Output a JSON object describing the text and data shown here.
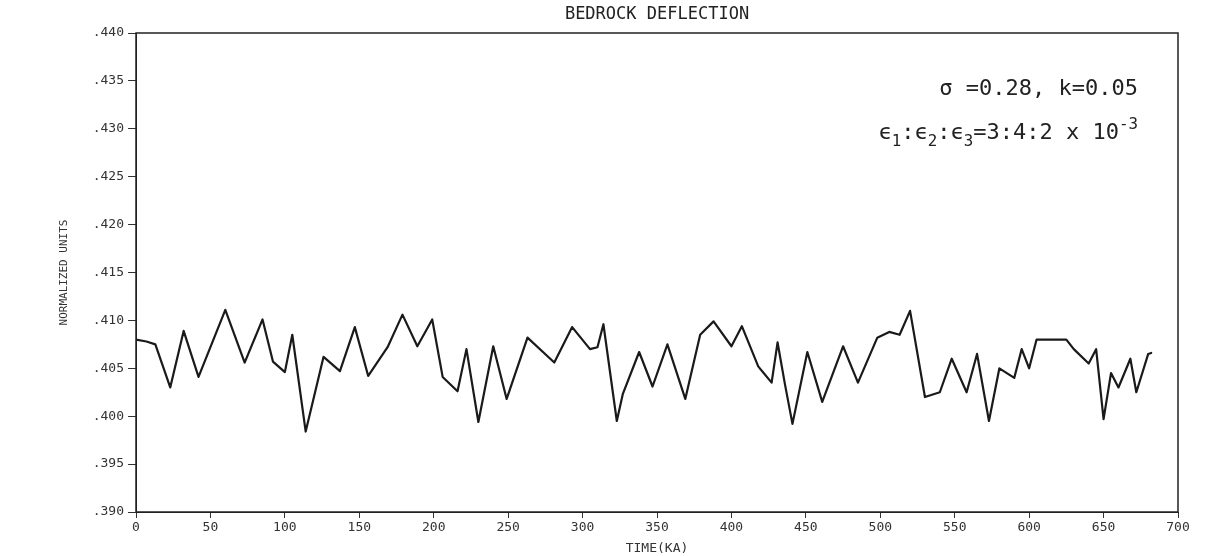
{
  "chart_data": {
    "type": "line",
    "title": "BEDROCK DEFLECTION",
    "xlabel": "TIME(KA)",
    "ylabel": "NORMALIZED UNITS",
    "x": [
      0,
      7,
      13,
      23,
      32,
      42,
      60,
      73,
      85,
      92,
      100,
      105,
      114,
      126,
      137,
      147,
      156,
      169,
      179,
      189,
      199,
      206,
      216,
      222,
      230,
      240,
      249,
      263,
      281,
      293,
      305,
      310,
      314,
      323,
      327,
      338,
      347,
      357,
      369,
      379,
      388,
      400,
      407,
      418,
      427,
      431,
      436,
      441,
      451,
      461,
      475,
      485,
      498,
      506,
      513,
      520,
      530,
      540,
      548,
      558,
      565,
      573,
      580,
      590,
      595,
      600,
      605,
      615,
      625,
      630,
      640,
      645,
      650,
      655,
      660,
      668,
      672,
      680,
      682
    ],
    "series": [
      {
        "color": "#1a1a1a",
        "values": [
          0.408,
          0.4078,
          0.4075,
          0.403,
          0.4089,
          0.4041,
          0.4111,
          0.4056,
          0.4101,
          0.4057,
          0.4046,
          0.4085,
          0.3984,
          0.4062,
          0.4047,
          0.4093,
          0.4042,
          0.4072,
          0.4106,
          0.4073,
          0.4101,
          0.4041,
          0.4026,
          0.407,
          0.3994,
          0.4073,
          0.4018,
          0.4082,
          0.4056,
          0.4093,
          0.407,
          0.4072,
          0.4096,
          0.3995,
          0.4023,
          0.4067,
          0.4031,
          0.4075,
          0.4018,
          0.4085,
          0.4099,
          0.4073,
          0.4094,
          0.4052,
          0.4035,
          0.4077,
          0.4033,
          0.3992,
          0.4067,
          0.4015,
          0.4073,
          0.4035,
          0.4082,
          0.4088,
          0.4085,
          0.411,
          0.402,
          0.4025,
          0.406,
          0.4025,
          0.4065,
          0.3995,
          0.405,
          0.404,
          0.407,
          0.405,
          0.408,
          0.408,
          0.408,
          0.407,
          0.4055,
          0.407,
          0.3997,
          0.4045,
          0.403,
          0.406,
          0.4025,
          0.4065,
          0.4066
        ]
      }
    ],
    "xlim": [
      0,
      700
    ],
    "xticks": [
      0,
      50,
      100,
      150,
      200,
      250,
      300,
      350,
      400,
      450,
      500,
      550,
      600,
      650,
      700
    ],
    "ylim": [
      0.39,
      0.44
    ],
    "yticks": [
      {
        "value": 0.39,
        "label": ".390"
      },
      {
        "value": 0.395,
        "label": ".395"
      },
      {
        "value": 0.4,
        "label": ".400"
      },
      {
        "value": 0.405,
        "label": ".405"
      },
      {
        "value": 0.41,
        "label": ".410"
      },
      {
        "value": 0.415,
        "label": ".415"
      },
      {
        "value": 0.42,
        "label": ".420"
      },
      {
        "value": 0.425,
        "label": ".425"
      },
      {
        "value": 0.43,
        "label": ".430"
      },
      {
        "value": 0.435,
        "label": ".435"
      },
      {
        "value": 0.44,
        "label": ".440"
      }
    ],
    "annotations": [
      "σ =0.28, k=0.05",
      "ϵ$_{1}$:ϵ$_{2}$:ϵ$_{3}$=3:4:2 x 10$^{-3}$"
    ],
    "grid": false,
    "legend": false,
    "marker": "none",
    "line_style": "solid"
  }
}
